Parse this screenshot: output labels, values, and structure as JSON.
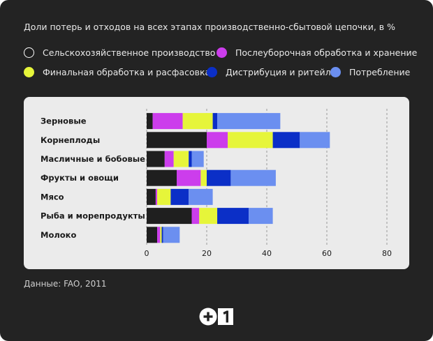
{
  "title": "Доли потерь и отходов на всех этапах производственно-сбытовой цепочки, в %",
  "source": "Данные: FAO, 2011",
  "logo": {
    "text": "+1"
  },
  "colors": {
    "background": "#232323",
    "plot_background": "#ebebeb",
    "stage_colors": [
      "#1f1f1f",
      "#cc3dec",
      "#e6f53a",
      "#0b2fc7",
      "#6b8ff0"
    ]
  },
  "chart_data": {
    "type": "bar",
    "orientation": "horizontal",
    "stacked": true,
    "title": "Доли потерь и отходов на всех этапах производственно-сбытовой цепочки, в %",
    "categories": [
      "Зерновые",
      "Корнеплоды",
      "Масличные и бобовые",
      "Фрукты и овощи",
      "Мясо",
      "Рыба и морепродукты",
      "Молоко"
    ],
    "series": [
      {
        "name": "Сельскохозяйственное производство",
        "color": "#1f1f1f",
        "values": [
          2,
          20,
          6,
          10,
          3,
          15,
          3.5
        ]
      },
      {
        "name": "Послеуборочная обработка и хранение",
        "color": "#cc3dec",
        "values": [
          10,
          7,
          3,
          8,
          0.5,
          2.5,
          1
        ]
      },
      {
        "name": "Финальная обработка и расфасовка",
        "color": "#e6f53a",
        "values": [
          10,
          15,
          5,
          2,
          4.5,
          6,
          0.5
        ]
      },
      {
        "name": "Дистрибуция и ритейл",
        "color": "#0b2fc7",
        "values": [
          1.5,
          9,
          1,
          8,
          6,
          10.5,
          0.5
        ]
      },
      {
        "name": "Потребление",
        "color": "#6b8ff0",
        "values": [
          21,
          10,
          4,
          15,
          8,
          8,
          5.5
        ]
      }
    ],
    "xlim": [
      0,
      80
    ],
    "xticks": [
      0,
      20,
      40,
      60,
      80
    ],
    "grid": true,
    "legend_position": "top"
  }
}
